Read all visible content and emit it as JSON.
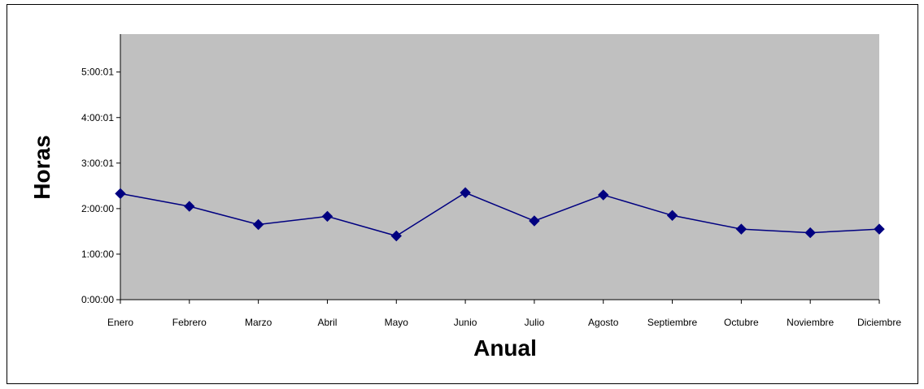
{
  "chart_data": {
    "type": "line",
    "title": "",
    "xlabel": "Anual",
    "ylabel": "Horas",
    "categories": [
      "Enero",
      "Febrero",
      "Marzo",
      "Abril",
      "Mayo",
      "Junio",
      "Julio",
      "Agosto",
      "Septiembre",
      "Octubre",
      "Noviembre",
      "Diciembre"
    ],
    "y_ticks": [
      "0:00:00",
      "1:00:00",
      "2:00:00",
      "3:00:01",
      "4:00:01",
      "5:00:01"
    ],
    "y_tick_values_hours": [
      0,
      1,
      2,
      3,
      4,
      5
    ],
    "ylim_hours": [
      0,
      5.833
    ],
    "series": [
      {
        "values_hours": [
          2.33,
          2.05,
          1.65,
          1.83,
          1.4,
          2.35,
          1.73,
          2.3,
          1.85,
          1.55,
          1.47,
          1.55
        ]
      }
    ],
    "grid": false,
    "legend": "none",
    "colors": {
      "plot_background": "#c0c0c0",
      "line": "#000080",
      "marker": "#000080",
      "axis": "#000000"
    }
  }
}
